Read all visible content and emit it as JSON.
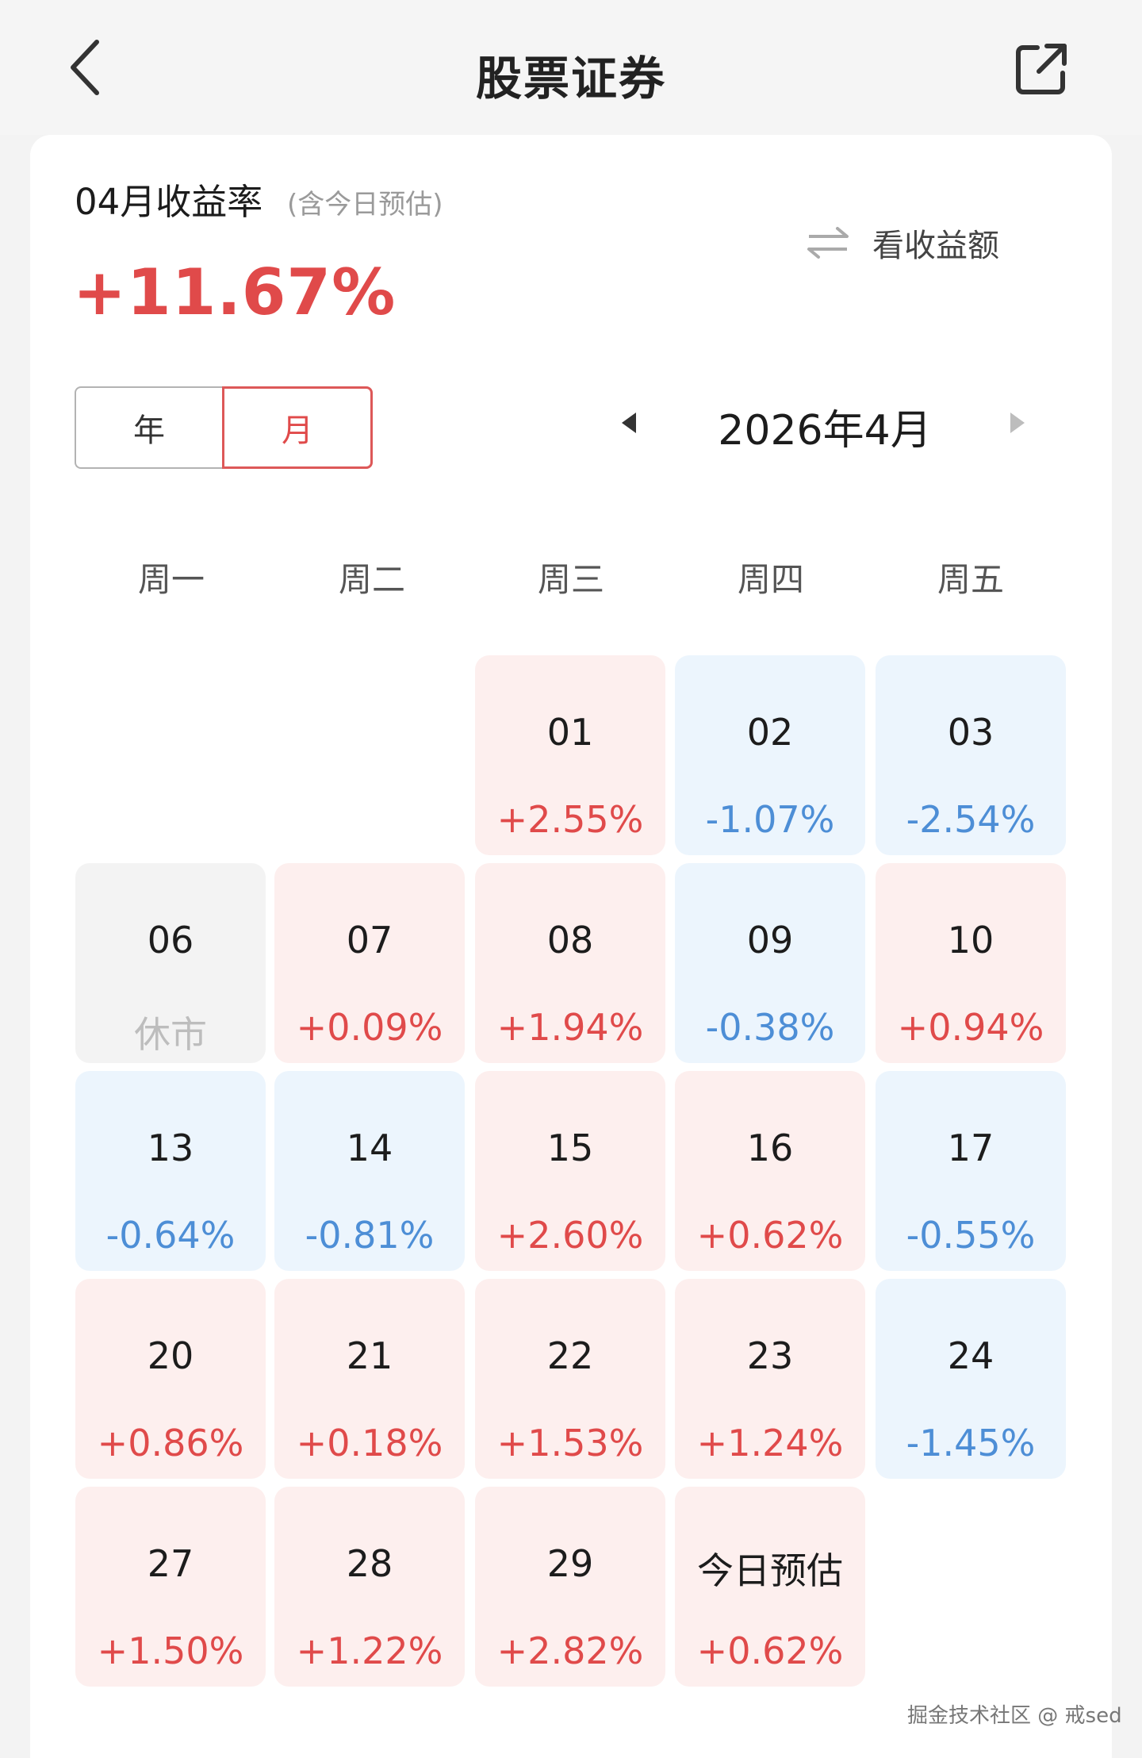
{
  "header": {
    "title": "股票证券",
    "back_icon": "chevron-left-icon",
    "share_icon": "external-share-icon"
  },
  "summary": {
    "label": "04月收益率",
    "note": "(含今日预估)",
    "total_rate": "+11.67%",
    "toggle_label": "看收益额",
    "toggle_icon": "swap-arrows-icon"
  },
  "period": {
    "year_label": "年",
    "month_label": "月",
    "selected": "月",
    "current_month": "2026年4月"
  },
  "weekdays": [
    "周一",
    "周二",
    "周三",
    "周四",
    "周五"
  ],
  "calendar": [
    {
      "day": "01",
      "value": "+2.55%",
      "trend": "up"
    },
    {
      "day": "02",
      "value": "-1.07%",
      "trend": "down"
    },
    {
      "day": "03",
      "value": "-2.54%",
      "trend": "down"
    },
    {
      "day": "06",
      "value": "休市",
      "trend": "closed"
    },
    {
      "day": "07",
      "value": "+0.09%",
      "trend": "up"
    },
    {
      "day": "08",
      "value": "+1.94%",
      "trend": "up"
    },
    {
      "day": "09",
      "value": "-0.38%",
      "trend": "down"
    },
    {
      "day": "10",
      "value": "+0.94%",
      "trend": "up"
    },
    {
      "day": "13",
      "value": "-0.64%",
      "trend": "down"
    },
    {
      "day": "14",
      "value": "-0.81%",
      "trend": "down"
    },
    {
      "day": "15",
      "value": "+2.60%",
      "trend": "up"
    },
    {
      "day": "16",
      "value": "+0.62%",
      "trend": "up"
    },
    {
      "day": "17",
      "value": "-0.55%",
      "trend": "down"
    },
    {
      "day": "20",
      "value": "+0.86%",
      "trend": "up"
    },
    {
      "day": "21",
      "value": "+0.18%",
      "trend": "up"
    },
    {
      "day": "22",
      "value": "+1.53%",
      "trend": "up"
    },
    {
      "day": "23",
      "value": "+1.24%",
      "trend": "up"
    },
    {
      "day": "24",
      "value": "-1.45%",
      "trend": "down"
    },
    {
      "day": "27",
      "value": "+1.50%",
      "trend": "up"
    },
    {
      "day": "28",
      "value": "+1.22%",
      "trend": "up"
    },
    {
      "day": "29",
      "value": "+2.82%",
      "trend": "up"
    },
    {
      "day": "今日预估",
      "value": "+0.62%",
      "trend": "up"
    }
  ],
  "colors": {
    "gain": "#e04a4a",
    "loss": "#4d8ed6",
    "gain_bg": "#fdefee",
    "loss_bg": "#ecf5fd"
  },
  "watermark": "掘金技术社区 @ 戒sed"
}
